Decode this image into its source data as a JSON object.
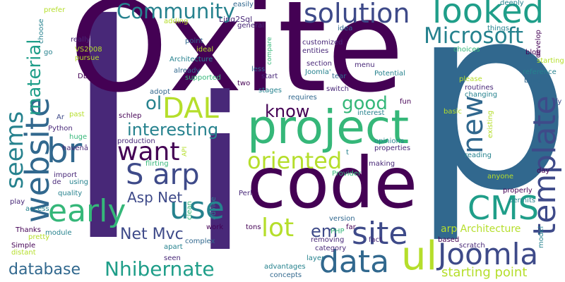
{
  "palette": {
    "purple": "#440154",
    "indigo": "#482878",
    "violet": "#3e4a89",
    "blue": "#31688e",
    "steel": "#26828e",
    "teal": "#1f9e89",
    "green": "#35b779",
    "lime": "#6ece58",
    "chartreuse": "#b5de2b",
    "yellow": "#fde725"
  },
  "words": {
    "w1": "p",
    "w2": "l",
    "w3": "Oxite",
    "w4": "code",
    "w5": "i",
    "w6": "project",
    "w7": "looked",
    "w8": "solution",
    "w9": "Community",
    "w10": "Microsoft",
    "w11": "template",
    "w12": "CMS",
    "w13": "website",
    "w14": "data",
    "w15": "Joomla",
    "w16": "ul",
    "w17": "site",
    "w18": "new",
    "w19": "use",
    "w20": "early",
    "w21": "DAL",
    "w22": "br",
    "w23": "want",
    "w24": "S arp",
    "w25": "seems",
    "w26": "oriented",
    "w27": "interesting",
    "w28": "know",
    "w29": "good",
    "w30": "ol",
    "w31": "material",
    "w32": "Asp Net",
    "w33": "Net Mvc",
    "w34": "lot",
    "w35": "em",
    "w36": "Nhibernate",
    "w37": "database",
    "w38": "starting point",
    "w39": "arp Architecture",
    "w40": "easily",
    "w41": "Linq2Sql",
    "w42": "general",
    "w43": "prefer",
    "w44": "choose",
    "w45": "adding",
    "w46": "idea",
    "w47": "customized",
    "w48": "entities",
    "w49": "compare",
    "w50": "menu",
    "w51": "section",
    "w52": "Joomla'",
    "w53": "tear",
    "w54": "Potential",
    "w55": "things",
    "w56": "choices",
    "w57": "blog",
    "w58": "develop",
    "w59": "deeply",
    "w60": "starting",
    "w61": "reference",
    "w62": "build",
    "w63": "fy",
    "w64": "go",
    "w65": "VS2008",
    "w66": "pursue",
    "w67": "really",
    "w68": "DB",
    "w69": "point",
    "w70": "ideal",
    "w71": "Architecture",
    "w72": "already",
    "w73": "supported",
    "w74": "less",
    "w75": "start",
    "w76": "two",
    "w77": "stages",
    "w78": "requires",
    "w79": "switch",
    "w80": "please",
    "w81": "routines",
    "w82": "changing",
    "w83": "fun",
    "w84": "basic",
    "w85": "existing",
    "w86": "adopt",
    "w87": "past",
    "w88": "schlep",
    "w89": "interest",
    "w90": "Ar",
    "w91": "Python",
    "w92": "huge",
    "w93": "production",
    "w94": "havenâ",
    "w95": "flirting",
    "w96": "API",
    "w97": "opinions",
    "w98": "properties",
    "w99": "reading",
    "w100": "t",
    "w101": "making",
    "w102": "Provider",
    "w103": "import",
    "w104": "de",
    "w105": "using",
    "w106": "day",
    "w107": "anyone",
    "w108": "quality",
    "w109": "properly",
    "w110": "play",
    "w111": "permits",
    "w112": "access",
    "w113": "Perl",
    "w114": "clean",
    "w115": "advice",
    "w116": "Thanks",
    "w117": "module",
    "w118": "pretty",
    "w119": "work",
    "w120": "tons",
    "w121": "version",
    "w122": "far",
    "w123": "fact",
    "w124": "PHP",
    "w125": "removing",
    "w126": "based",
    "w127": "scratch",
    "w128": "model",
    "w129": "Simple",
    "w130": "distant",
    "w131": "apart",
    "w132": "complex",
    "w133": "category",
    "w134": "seen",
    "w135": "layer",
    "w136": "advantages",
    "w137": "concepts"
  }
}
